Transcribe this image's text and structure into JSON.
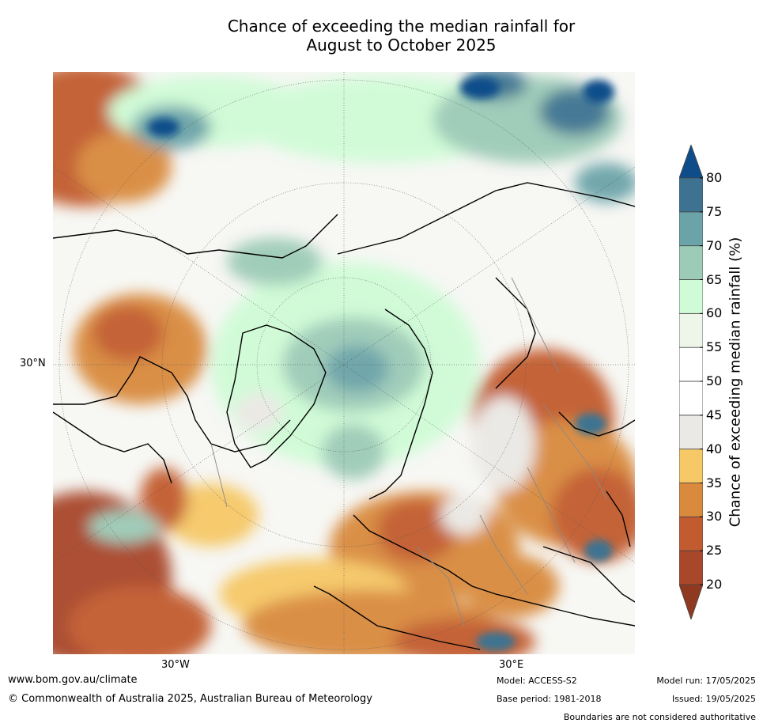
{
  "title_line1": "Chance of exceeding the median rainfall for",
  "title_line2": "August to October 2025",
  "map": {
    "lat_labels": [
      "30°N"
    ],
    "lon_labels": [
      "30°W",
      "30°E"
    ]
  },
  "legend": {
    "label": "Chance of exceeding median rainfall (%)",
    "ticks": [
      "20",
      "25",
      "30",
      "35",
      "40",
      "45",
      "50",
      "55",
      "60",
      "65",
      "70",
      "75",
      "80"
    ],
    "colors": [
      "#8f3a20",
      "#a9472a",
      "#c25b2f",
      "#d98a3d",
      "#f6c866",
      "#ebe9e5",
      "#ffffff",
      "#ffffff",
      "#eef6ea",
      "#cffcd6",
      "#9ccbb7",
      "#6aa3a8",
      "#3d7391",
      "#0f4d8a"
    ]
  },
  "footer": {
    "website": "www.bom.gov.au/climate",
    "copyright": "© Commonwealth of Australia 2025, Australian Bureau of Meteorology",
    "model": "Model: ACCESS-S2",
    "base_period": "Base period: 1981-2018",
    "model_run": "Model run: 17/05/2025",
    "issued": "Issued: 19/05/2025",
    "disclaimer": "Boundaries are not considered authoritative"
  }
}
